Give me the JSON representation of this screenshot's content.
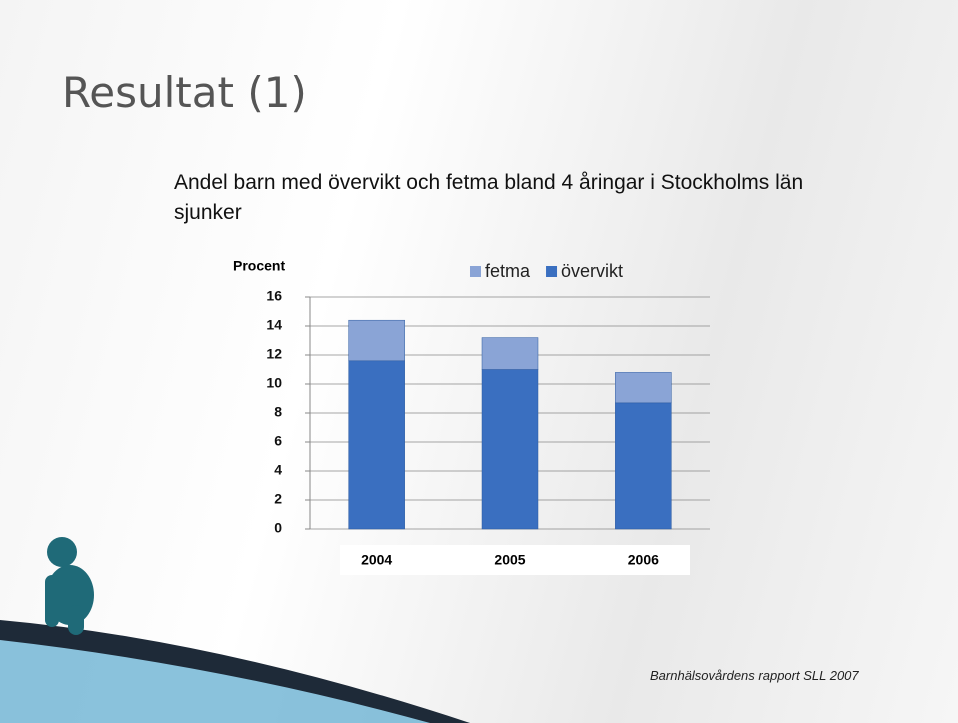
{
  "heading": "Resultat (1)",
  "source": "Barnhälsovårdens rapport SLL 2007",
  "chart_data": {
    "type": "stacked-bar",
    "title": "Andel barn med övervikt  och fetma bland 4 åringar i Stockholms län sjunker",
    "y_label": "Procent",
    "categories": [
      "2004",
      "2005",
      "2006"
    ],
    "series": [
      {
        "name": "övervikt",
        "color": "#3a6fc0",
        "values": [
          11.6,
          11.0,
          8.7
        ]
      },
      {
        "name": "fetma",
        "color": "#8aa4d6",
        "values": [
          2.8,
          2.2,
          2.1
        ]
      }
    ],
    "ylim": [
      0,
      16
    ],
    "yticks": [
      0,
      2,
      4,
      6,
      8,
      10,
      12,
      14,
      16
    ],
    "grid": true
  }
}
